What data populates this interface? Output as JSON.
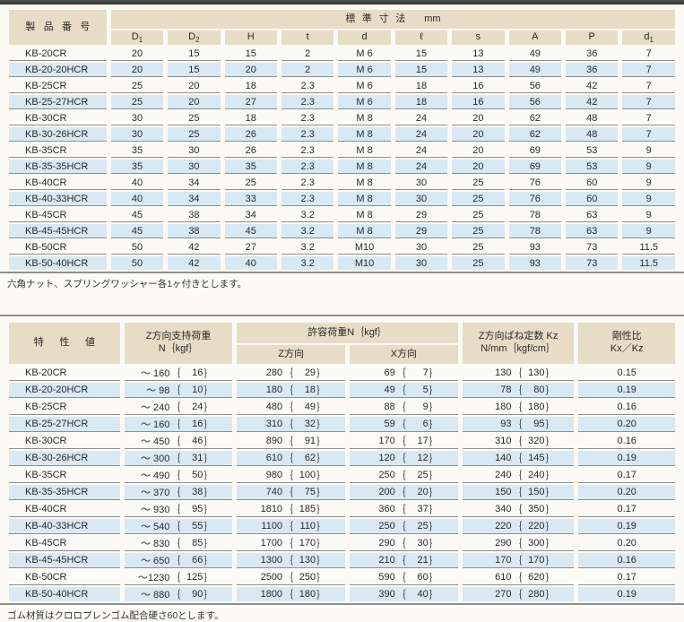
{
  "colors": {
    "header_beige": "#e7dcc5",
    "stripe_blue": "#d8e9f4",
    "rule_gray": "#8f8f8f",
    "top_bar": "#3c3c3a"
  },
  "formatting": {
    "brace_open": "｛",
    "brace_close": "｝"
  },
  "table1": {
    "name_header": "製品番号",
    "group_header": "標準寸法",
    "group_unit": "mm",
    "columns": [
      {
        "base": "D",
        "sub": "1"
      },
      {
        "base": "D",
        "sub": "2"
      },
      {
        "base": "H"
      },
      {
        "base": "t"
      },
      {
        "base": "d"
      },
      {
        "base": "ℓ"
      },
      {
        "base": "s"
      },
      {
        "base": "A"
      },
      {
        "base": "P"
      },
      {
        "base": "d",
        "sub": "1"
      }
    ],
    "rows": [
      {
        "name": "KB-20CR",
        "values": [
          "20",
          "15",
          "15",
          "2",
          "M 6",
          "15",
          "13",
          "49",
          "36",
          "7"
        ]
      },
      {
        "name": "KB-20-20HCR",
        "values": [
          "20",
          "15",
          "20",
          "2",
          "M 6",
          "15",
          "13",
          "49",
          "36",
          "7"
        ]
      },
      {
        "name": "KB-25CR",
        "values": [
          "25",
          "20",
          "18",
          "2.3",
          "M 6",
          "18",
          "16",
          "56",
          "42",
          "7"
        ]
      },
      {
        "name": "KB-25-27HCR",
        "values": [
          "25",
          "20",
          "27",
          "2.3",
          "M 6",
          "18",
          "16",
          "56",
          "42",
          "7"
        ]
      },
      {
        "name": "KB-30CR",
        "values": [
          "30",
          "25",
          "18",
          "2.3",
          "M 8",
          "24",
          "20",
          "62",
          "48",
          "7"
        ]
      },
      {
        "name": "KB-30-26HCR",
        "values": [
          "30",
          "25",
          "26",
          "2.3",
          "M 8",
          "24",
          "20",
          "62",
          "48",
          "7"
        ]
      },
      {
        "name": "KB-35CR",
        "values": [
          "35",
          "30",
          "26",
          "2.3",
          "M 8",
          "24",
          "20",
          "69",
          "53",
          "9"
        ]
      },
      {
        "name": "KB-35-35HCR",
        "values": [
          "35",
          "30",
          "35",
          "2.3",
          "M 8",
          "24",
          "20",
          "69",
          "53",
          "9"
        ]
      },
      {
        "name": "KB-40CR",
        "values": [
          "40",
          "34",
          "25",
          "2.3",
          "M 8",
          "30",
          "25",
          "76",
          "60",
          "9"
        ]
      },
      {
        "name": "KB-40-33HCR",
        "values": [
          "40",
          "34",
          "33",
          "2.3",
          "M 8",
          "30",
          "25",
          "76",
          "60",
          "9"
        ]
      },
      {
        "name": "KB-45CR",
        "values": [
          "45",
          "38",
          "34",
          "3.2",
          "M 8",
          "29",
          "25",
          "78",
          "63",
          "9"
        ]
      },
      {
        "name": "KB-45-45HCR",
        "values": [
          "45",
          "38",
          "45",
          "3.2",
          "M 8",
          "29",
          "25",
          "78",
          "63",
          "9"
        ]
      },
      {
        "name": "KB-50CR",
        "values": [
          "50",
          "42",
          "27",
          "3.2",
          "M10",
          "30",
          "25",
          "93",
          "73",
          "11.5"
        ]
      },
      {
        "name": "KB-50-40HCR",
        "values": [
          "50",
          "42",
          "40",
          "3.2",
          "M10",
          "30",
          "25",
          "93",
          "73",
          "11.5"
        ]
      }
    ],
    "footnote": "六角ナット、スプリングワッシャー各1ヶ付きとします。"
  },
  "table2": {
    "name_header": "特性値",
    "col_support": {
      "line1": "Z方向支持荷重",
      "line2": "N｛kgf｝"
    },
    "col_allow": {
      "label": "許容荷重N｛kgf｝",
      "sub1": "Z方向",
      "sub2": "X方向"
    },
    "col_spring": {
      "line1": "Z方向ばね定数 Kz",
      "line2": "N/mm｛kgf/cm｝"
    },
    "col_rigidity": {
      "line1": "剛性比",
      "line2": "Kx／Kz"
    },
    "rows": [
      {
        "name": "KB-20CR",
        "support": [
          "～ 160",
          "16"
        ],
        "z": [
          "280",
          "29"
        ],
        "x": [
          "69",
          "7"
        ],
        "spring": [
          "130",
          "130"
        ],
        "ratio": "0.15"
      },
      {
        "name": "KB-20-20HCR",
        "support": [
          "～ 98",
          "10"
        ],
        "z": [
          "180",
          "18"
        ],
        "x": [
          "49",
          "5"
        ],
        "spring": [
          "78",
          "80"
        ],
        "ratio": "0.19"
      },
      {
        "name": "KB-25CR",
        "support": [
          "～ 240",
          "24"
        ],
        "z": [
          "480",
          "49"
        ],
        "x": [
          "88",
          "9"
        ],
        "spring": [
          "180",
          "180"
        ],
        "ratio": "0.16"
      },
      {
        "name": "KB-25-27HCR",
        "support": [
          "～ 160",
          "16"
        ],
        "z": [
          "310",
          "32"
        ],
        "x": [
          "59",
          "6"
        ],
        "spring": [
          "93",
          "95"
        ],
        "ratio": "0.20"
      },
      {
        "name": "KB-30CR",
        "support": [
          "～ 450",
          "46"
        ],
        "z": [
          "890",
          "91"
        ],
        "x": [
          "170",
          "17"
        ],
        "spring": [
          "310",
          "320"
        ],
        "ratio": "0.16"
      },
      {
        "name": "KB-30-26HCR",
        "support": [
          "～ 300",
          "31"
        ],
        "z": [
          "610",
          "62"
        ],
        "x": [
          "120",
          "12"
        ],
        "spring": [
          "140",
          "145"
        ],
        "ratio": "0.19"
      },
      {
        "name": "KB-35CR",
        "support": [
          "～ 490",
          "50"
        ],
        "z": [
          "980",
          "100"
        ],
        "x": [
          "250",
          "25"
        ],
        "spring": [
          "240",
          "240"
        ],
        "ratio": "0.17"
      },
      {
        "name": "KB-35-35HCR",
        "support": [
          "～ 370",
          "38"
        ],
        "z": [
          "740",
          "75"
        ],
        "x": [
          "200",
          "20"
        ],
        "spring": [
          "150",
          "150"
        ],
        "ratio": "0.20"
      },
      {
        "name": "KB-40CR",
        "support": [
          "～ 930",
          "95"
        ],
        "z": [
          "1810",
          "185"
        ],
        "x": [
          "360",
          "37"
        ],
        "spring": [
          "340",
          "350"
        ],
        "ratio": "0.17"
      },
      {
        "name": "KB-40-33HCR",
        "support": [
          "～ 540",
          "55"
        ],
        "z": [
          "1100",
          "110"
        ],
        "x": [
          "250",
          "25"
        ],
        "spring": [
          "220",
          "220"
        ],
        "ratio": "0.19"
      },
      {
        "name": "KB-45CR",
        "support": [
          "～ 830",
          "85"
        ],
        "z": [
          "1700",
          "170"
        ],
        "x": [
          "290",
          "30"
        ],
        "spring": [
          "290",
          "300"
        ],
        "ratio": "0.20"
      },
      {
        "name": "KB-45-45HCR",
        "support": [
          "～ 650",
          "66"
        ],
        "z": [
          "1300",
          "130"
        ],
        "x": [
          "210",
          "21"
        ],
        "spring": [
          "170",
          "170"
        ],
        "ratio": "0.16"
      },
      {
        "name": "KB-50CR",
        "support": [
          "～1230",
          "125"
        ],
        "z": [
          "2500",
          "250"
        ],
        "x": [
          "590",
          "60"
        ],
        "spring": [
          "610",
          "620"
        ],
        "ratio": "0.17"
      },
      {
        "name": "KB-50-40HCR",
        "support": [
          "～ 880",
          "90"
        ],
        "z": [
          "1800",
          "180"
        ],
        "x": [
          "390",
          "40"
        ],
        "spring": [
          "270",
          "280"
        ],
        "ratio": "0.19"
      }
    ],
    "footnote": "ゴム材質はクロロプレンゴム配合硬さ60とします。"
  }
}
